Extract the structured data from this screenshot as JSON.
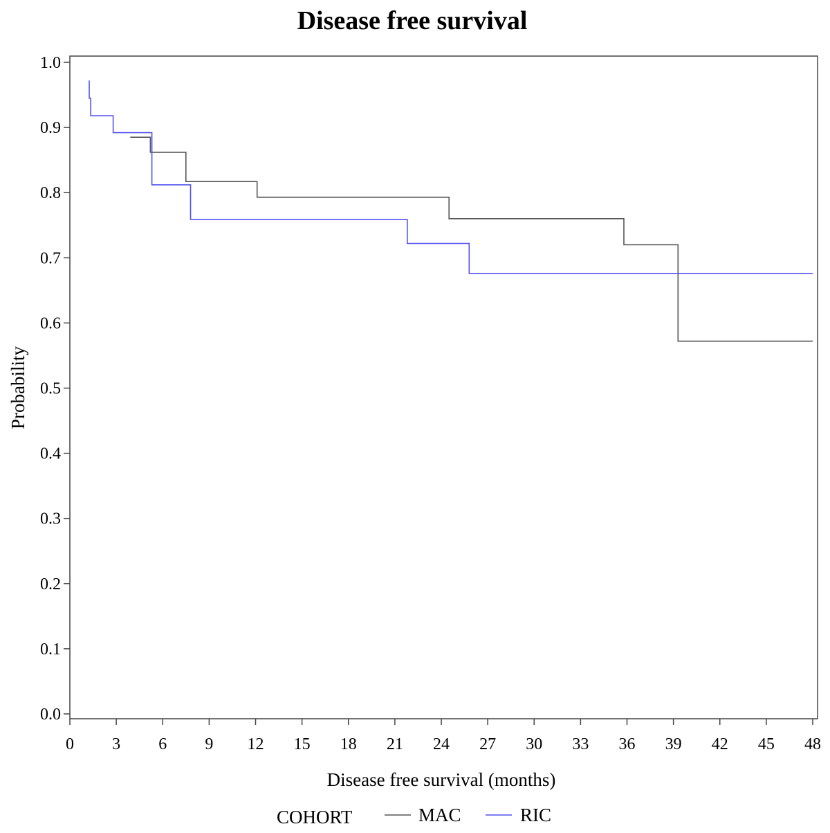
{
  "chart_data": {
    "type": "line",
    "step": true,
    "title": "Disease free survival",
    "xlabel": "Disease free survival (months)",
    "ylabel": "Probability",
    "xlim": [
      0,
      48
    ],
    "ylim": [
      0,
      1
    ],
    "xticks": [
      "0",
      "3",
      "6",
      "9",
      "12",
      "15",
      "18",
      "21",
      "24",
      "27",
      "30",
      "33",
      "36",
      "39",
      "42",
      "45",
      "48"
    ],
    "yticks": [
      "0.0",
      "0.1",
      "0.2",
      "0.3",
      "0.4",
      "0.5",
      "0.6",
      "0.7",
      "0.8",
      "0.9",
      "1.0"
    ],
    "grid": false,
    "legend": {
      "title": "COHORT",
      "position": "bottom"
    },
    "series": [
      {
        "name": "MAC",
        "color": "#555555",
        "points": [
          [
            3.9,
            0.885
          ],
          [
            5.2,
            0.885
          ],
          [
            5.2,
            0.862
          ],
          [
            7.5,
            0.862
          ],
          [
            7.5,
            0.817
          ],
          [
            12.1,
            0.817
          ],
          [
            12.1,
            0.793
          ],
          [
            24.5,
            0.793
          ],
          [
            24.5,
            0.76
          ],
          [
            35.8,
            0.76
          ],
          [
            35.8,
            0.72
          ],
          [
            39.3,
            0.72
          ],
          [
            39.3,
            0.572
          ],
          [
            48,
            0.572
          ]
        ]
      },
      {
        "name": "RIC",
        "color": "#5050ee",
        "points": [
          [
            1.25,
            0.972
          ],
          [
            1.25,
            0.945
          ],
          [
            1.35,
            0.945
          ],
          [
            1.35,
            0.918
          ],
          [
            2.8,
            0.918
          ],
          [
            2.8,
            0.892
          ],
          [
            5.3,
            0.892
          ],
          [
            5.3,
            0.812
          ],
          [
            7.8,
            0.812
          ],
          [
            7.8,
            0.759
          ],
          [
            21.8,
            0.759
          ],
          [
            21.8,
            0.722
          ],
          [
            25.8,
            0.722
          ],
          [
            25.8,
            0.676
          ],
          [
            48,
            0.676
          ]
        ]
      }
    ]
  }
}
